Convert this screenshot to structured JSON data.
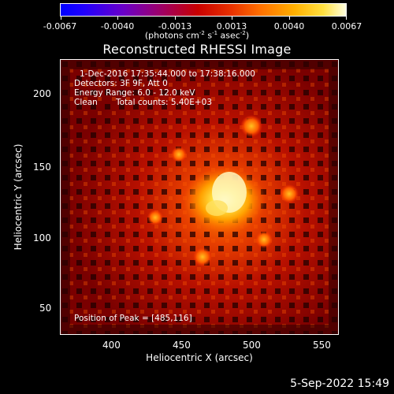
{
  "colorbar": {
    "ticks": [
      "-0.0067",
      "-0.0040",
      "-0.0013",
      "0.0013",
      "0.0040",
      "0.0067"
    ],
    "units_prefix": "(photons cm",
    "units_exp1": "-2",
    "units_mid": " s",
    "units_exp2": "-1",
    "units_mid2": " asec",
    "units_exp3": "-2",
    "units_suffix": ")"
  },
  "image": {
    "title": "Reconstructed RHESSI Image",
    "info_time": "1-Dec-2016 17:35:44.000 to 17:38:16.000",
    "info_detectors": "Detectors: 3F 9F, Att 0",
    "info_energy": "Energy Range: 6.0 - 12.0 keV",
    "info_clean": "Clean",
    "info_counts": "Total counts: 5.40E+03",
    "peak_label": "Position of Peak = [485,116]",
    "peak_x": 485,
    "peak_y": 116
  },
  "axes": {
    "xlabel": "Heliocentric X (arcsec)",
    "ylabel": "Heliocentric Y (arcsec)",
    "xticks": [
      "400",
      "450",
      "500",
      "550"
    ],
    "yticks": [
      "50",
      "100",
      "150",
      "200"
    ],
    "xlim": [
      362,
      562
    ],
    "ylim": [
      34,
      232
    ]
  },
  "timestamp": "5-Sep-2022 15:49",
  "colors": {
    "background": "#000000",
    "text": "#ffffff"
  }
}
